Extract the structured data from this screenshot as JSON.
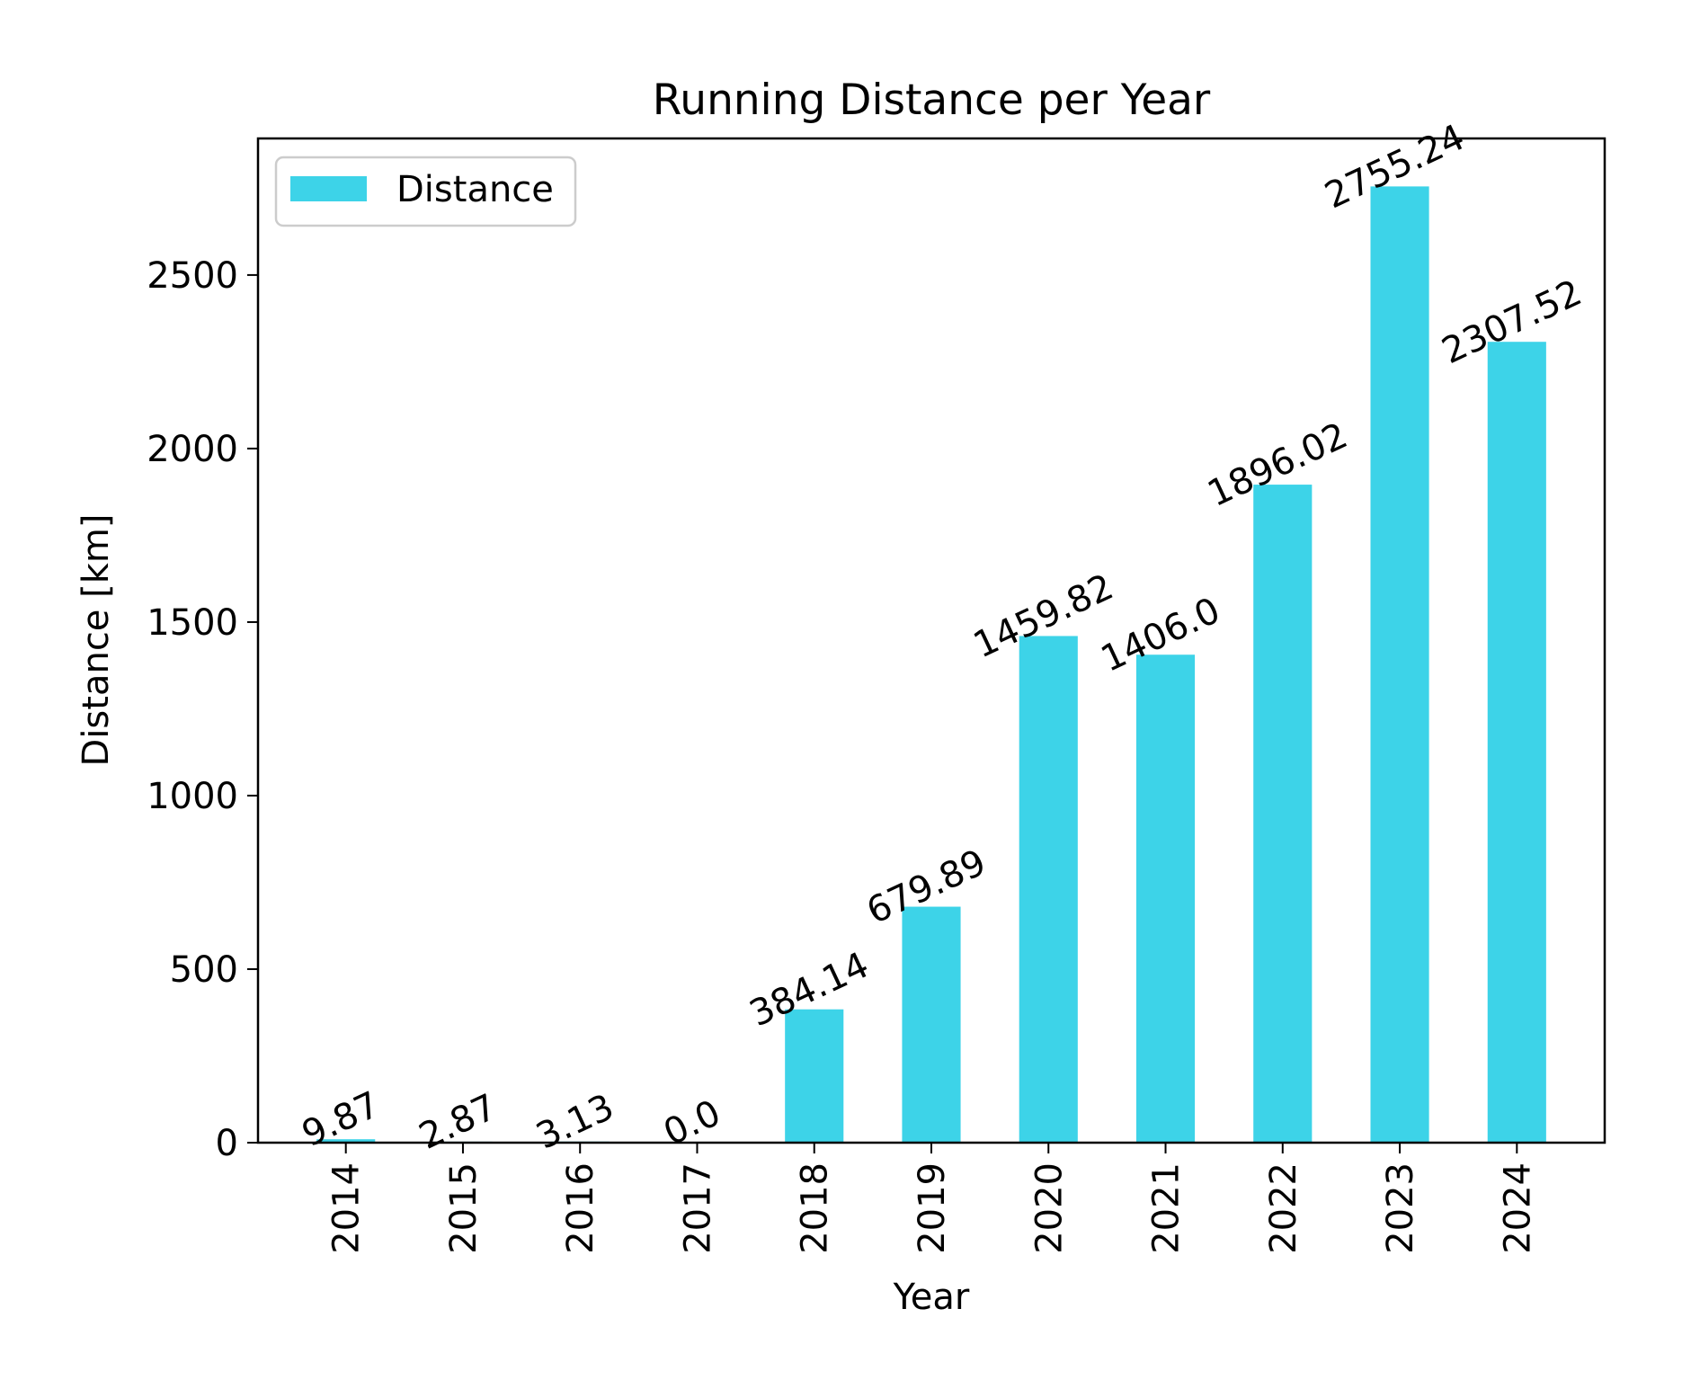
{
  "chart_data": {
    "type": "bar",
    "title": "Running Distance per Year",
    "xlabel": "Year",
    "ylabel": "Distance [km]",
    "categories": [
      "2014",
      "2015",
      "2016",
      "2017",
      "2018",
      "2019",
      "2020",
      "2021",
      "2022",
      "2023",
      "2024"
    ],
    "series": [
      {
        "name": "Distance",
        "color": "#3dd3e8",
        "values": [
          9.87,
          2.87,
          3.13,
          0.0,
          384.14,
          679.89,
          1459.82,
          1406.0,
          1896.02,
          2755.24,
          2307.52
        ]
      }
    ],
    "data_labels": [
      "9.87",
      "2.87",
      "3.13",
      "0.0",
      "384.14",
      "679.89",
      "1459.82",
      "1406.0",
      "1896.02",
      "2755.24",
      "2307.52"
    ],
    "yticks": [
      0,
      500,
      1000,
      1500,
      2000,
      2500
    ],
    "ytick_labels": [
      "0",
      "500",
      "1000",
      "1500",
      "2000",
      "2500"
    ],
    "ylim": [
      0,
      2893.5
    ],
    "grid": false,
    "legend_position": "top-left"
  }
}
